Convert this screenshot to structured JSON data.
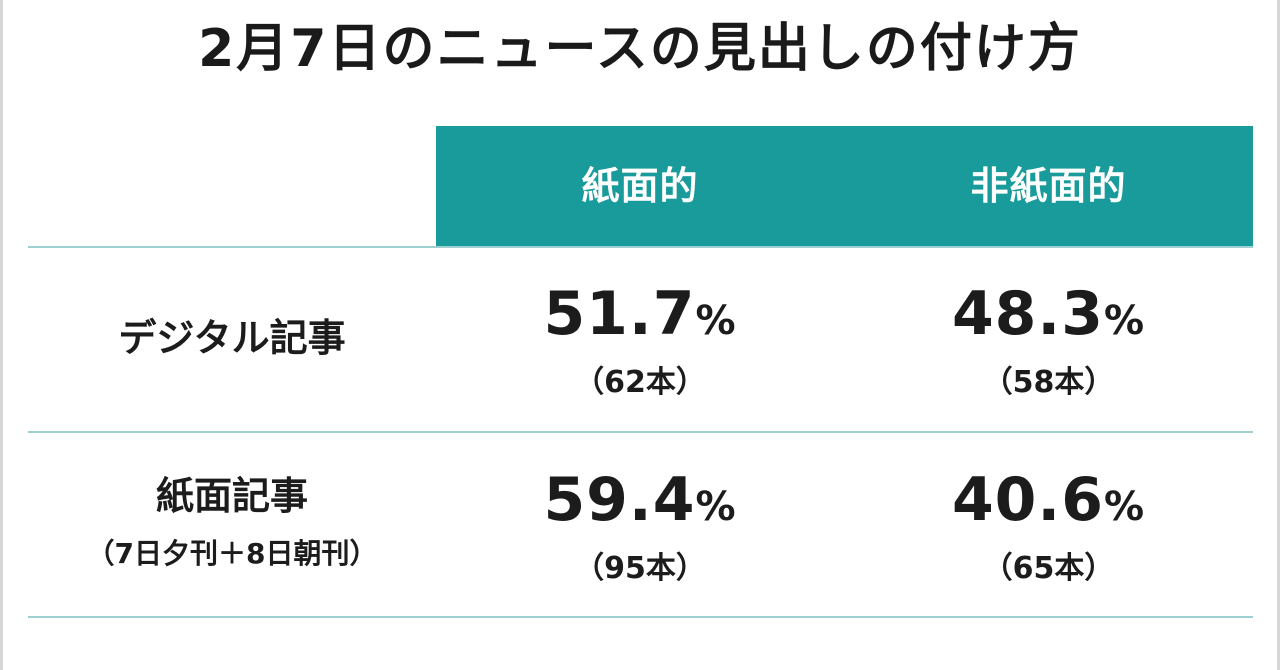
{
  "title": "2月7日のニュースの見出しの付け方",
  "columns": [
    "紙面的",
    "非紙面的"
  ],
  "colors": {
    "header_band": "#1a9b9b",
    "rule": "#9fcfcf",
    "text": "#1c1c1c"
  },
  "rows": [
    {
      "label": "デジタル記事",
      "sublabel": "",
      "cells": [
        {
          "value": "51.7",
          "unit": "%",
          "count": "（62本）"
        },
        {
          "value": "48.3",
          "unit": "%",
          "count": "（58本）"
        }
      ]
    },
    {
      "label": "紙面記事",
      "sublabel": "（7日夕刊＋8日朝刊）",
      "cells": [
        {
          "value": "59.4",
          "unit": "%",
          "count": "（95本）"
        },
        {
          "value": "40.6",
          "unit": "%",
          "count": "（65本）"
        }
      ]
    }
  ]
}
